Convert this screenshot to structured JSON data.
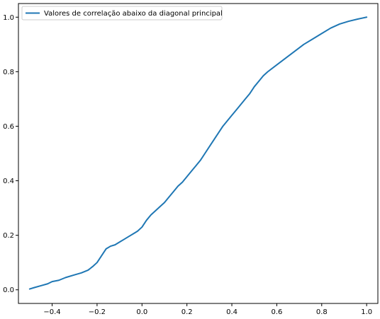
{
  "chart_data": {
    "type": "line",
    "title": "",
    "xlabel": "",
    "ylabel": "",
    "xlim": [
      -0.55,
      1.05
    ],
    "ylim": [
      -0.05,
      1.05
    ],
    "xticks": [
      -0.4,
      -0.2,
      0.0,
      0.2,
      0.4,
      0.6,
      0.8,
      1.0
    ],
    "xtick_labels": [
      "−0.4",
      "−0.2",
      "0.0",
      "0.2",
      "0.4",
      "0.6",
      "0.8",
      "1.0"
    ],
    "yticks": [
      0.0,
      0.2,
      0.4,
      0.6,
      0.8,
      1.0
    ],
    "ytick_labels": [
      "0.0",
      "0.2",
      "0.4",
      "0.6",
      "0.8",
      "1.0"
    ],
    "grid": false,
    "legend_position": "upper-left",
    "series": [
      {
        "name": "Valores de correlação abaixo da diagonal principal",
        "color": "#1f77b4",
        "x": [
          -0.5,
          -0.48,
          -0.45,
          -0.42,
          -0.4,
          -0.37,
          -0.34,
          -0.3,
          -0.27,
          -0.24,
          -0.22,
          -0.2,
          -0.18,
          -0.16,
          -0.14,
          -0.12,
          -0.1,
          -0.08,
          -0.06,
          -0.04,
          -0.02,
          0.0,
          0.02,
          0.04,
          0.06,
          0.08,
          0.1,
          0.12,
          0.14,
          0.16,
          0.18,
          0.2,
          0.22,
          0.24,
          0.26,
          0.28,
          0.3,
          0.32,
          0.34,
          0.36,
          0.38,
          0.4,
          0.42,
          0.44,
          0.46,
          0.48,
          0.5,
          0.52,
          0.54,
          0.56,
          0.6,
          0.64,
          0.68,
          0.72,
          0.76,
          0.8,
          0.84,
          0.88,
          0.92,
          0.96,
          1.0
        ],
        "y": [
          0.003,
          0.008,
          0.015,
          0.022,
          0.03,
          0.035,
          0.045,
          0.055,
          0.062,
          0.072,
          0.085,
          0.1,
          0.125,
          0.15,
          0.16,
          0.165,
          0.175,
          0.185,
          0.195,
          0.205,
          0.215,
          0.23,
          0.255,
          0.275,
          0.29,
          0.305,
          0.32,
          0.34,
          0.36,
          0.38,
          0.395,
          0.415,
          0.435,
          0.455,
          0.475,
          0.5,
          0.525,
          0.55,
          0.575,
          0.6,
          0.62,
          0.64,
          0.66,
          0.68,
          0.7,
          0.72,
          0.745,
          0.765,
          0.785,
          0.8,
          0.825,
          0.85,
          0.875,
          0.9,
          0.92,
          0.94,
          0.96,
          0.975,
          0.985,
          0.993,
          1.0
        ]
      }
    ]
  }
}
